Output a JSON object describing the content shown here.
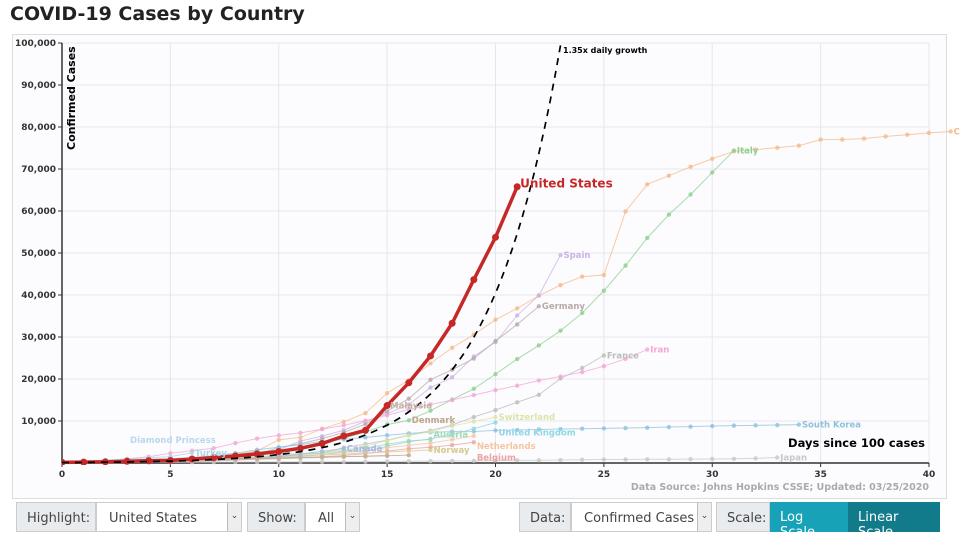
{
  "title": "COVID-19 Cases by Country",
  "controls": {
    "highlight_label": "Highlight:",
    "highlight_value": "United States",
    "show_label": "Show:",
    "show_value": "All",
    "data_label": "Data:",
    "data_value": "Confirmed Cases",
    "scale_label": "Scale:",
    "log_button": "Log Scale",
    "linear_button": "Linear Scale",
    "active_scale": "Linear Scale"
  },
  "chart_data": {
    "type": "line",
    "xlabel": "Days since 100 cases",
    "ylabel": "Confirmed Cases",
    "xlim": [
      0,
      40
    ],
    "ylim": [
      0,
      100000
    ],
    "xticks": [
      "0",
      "5",
      "10",
      "15",
      "20",
      "25",
      "30",
      "35",
      "40"
    ],
    "yticks": [
      "10,000",
      "20,000",
      "30,000",
      "40,000",
      "50,000",
      "60,000",
      "70,000",
      "80,000",
      "90,000",
      "100,000"
    ],
    "grid": true,
    "source_note": "Data Source: Johns Hopkins CSSE; Updated: 03/25/2020",
    "reference_line": {
      "label": "1.35x daily growth",
      "start": 100,
      "growth": 1.35,
      "color": "#000000"
    },
    "highlight": "United States",
    "series": [
      {
        "name": "United States",
        "color": "#c62828",
        "start": 0,
        "values": [
          158,
          217,
          278,
          417,
          537,
          605,
          959,
          1281,
          1663,
          2179,
          2726,
          3499,
          4632,
          6421,
          7786,
          13677,
          19100,
          25489,
          33276,
          43667,
          53740,
          65778
        ]
      },
      {
        "name": "China",
        "color": "#f5b98a",
        "start": 4,
        "values": [
          548,
          643,
          920,
          1406,
          2075,
          2877,
          5509,
          6087,
          8141,
          9802,
          11891,
          16630,
          19716,
          23707,
          27440,
          30587,
          34110,
          36814,
          39829,
          42354,
          44386,
          44759,
          59895,
          66358,
          68413,
          70513,
          72434,
          74211,
          74619,
          75077,
          75550,
          77001,
          77022,
          77241,
          77754,
          78166,
          78600,
          78928
        ]
      },
      {
        "name": "Italy",
        "color": "#8fcf8f",
        "start": 0,
        "values": [
          155,
          229,
          322,
          453,
          655,
          888,
          1128,
          1694,
          2036,
          2502,
          3089,
          3858,
          4636,
          5883,
          7375,
          9172,
          10149,
          12462,
          15113,
          17660,
          21157,
          24747,
          27980,
          31506,
          35713,
          41035,
          47021,
          53578,
          59138,
          63927,
          69176,
          74386
        ]
      },
      {
        "name": "Spain",
        "color": "#c9b3e6",
        "start": 0,
        "values": [
          120,
          165,
          222,
          282,
          400,
          500,
          673,
          1073,
          1695,
          2277,
          3146,
          5232,
          6391,
          7798,
          9942,
          11748,
          13910,
          17963,
          20410,
          25374,
          28768,
          35136,
          39885,
          49515
        ]
      },
      {
        "name": "Germany",
        "color": "#b9a9a9",
        "start": 0,
        "values": [
          196,
          262,
          482,
          670,
          795,
          1040,
          1176,
          1457,
          1908,
          2078,
          3675,
          4585,
          5795,
          7272,
          9257,
          12327,
          15320,
          19848,
          22213,
          24873,
          29056,
          32986,
          37323
        ]
      },
      {
        "name": "France",
        "color": "#bdbdbd",
        "start": 0,
        "values": [
          100,
          130,
          191,
          204,
          285,
          377,
          653,
          706,
          1126,
          1209,
          1784,
          2284,
          2284,
          3661,
          4499,
          5423,
          6650,
          7699,
          9043,
          10947,
          12612,
          14459,
          16243,
          20123,
          22622,
          25600
        ]
      },
      {
        "name": "Iran",
        "color": "#f2a7d6",
        "start": 0,
        "values": [
          245,
          388,
          593,
          978,
          1501,
          2336,
          2922,
          3513,
          4747,
          5823,
          6566,
          7161,
          8042,
          9000,
          10075,
          11364,
          12729,
          13938,
          14991,
          16169,
          17361,
          18407,
          19644,
          20610,
          21638,
          23049,
          24811,
          27017
        ]
      },
      {
        "name": "South Korea",
        "color": "#8fc1dc",
        "start": 0,
        "values": [
          104,
          204,
          433,
          602,
          833,
          977,
          1261,
          1766,
          2337,
          3150,
          3736,
          4335,
          5186,
          5621,
          6088,
          6593,
          7041,
          7314,
          7478,
          7513,
          7755,
          7869,
          7979,
          8086,
          8162,
          8236,
          8320,
          8413,
          8565,
          8652,
          8799,
          8897,
          8961,
          9037,
          9137
        ]
      },
      {
        "name": "Japan",
        "color": "#c8c8c8",
        "start": 0,
        "values": [
          105,
          132,
          144,
          144,
          156,
          160,
          170,
          189,
          214,
          228,
          241,
          256,
          274,
          293,
          331,
          360,
          420,
          461,
          502,
          511,
          581,
          639,
          639,
          701,
          773,
          839,
          839,
          878,
          889,
          924,
          963,
          1007,
          1101,
          1307
        ]
      },
      {
        "name": "Switzerland",
        "color": "#d9e6a8",
        "start": 0,
        "values": [
          114,
          214,
          268,
          337,
          374,
          491,
          652,
          652,
          1139,
          1359,
          2200,
          2200,
          2700,
          3028,
          4075,
          5294,
          6575,
          7474,
          8795,
          9877,
          10897
        ]
      },
      {
        "name": "United Kingdom",
        "color": "#8fd6e6",
        "start": 0,
        "values": [
          115,
          163,
          206,
          273,
          321,
          382,
          456,
          459,
          802,
          1144,
          1145,
          1551,
          1960,
          2642,
          2716,
          4014,
          5067,
          5745,
          6726,
          8164,
          9640
        ]
      },
      {
        "name": "Netherlands",
        "color": "#f5c6a0",
        "start": 0,
        "values": [
          128,
          188,
          265,
          321,
          382,
          503,
          503,
          806,
          962,
          1138,
          1416,
          1711,
          2058,
          2467,
          3003,
          3640,
          4216,
          4764,
          5580,
          6438
        ]
      },
      {
        "name": "Belgium",
        "color": "#eba3a3",
        "start": 0,
        "values": [
          109,
          169,
          200,
          239,
          267,
          314,
          314,
          559,
          689,
          886,
          1058,
          1243,
          1486,
          1795,
          2257,
          2815,
          3401,
          3743,
          4269,
          4937
        ]
      },
      {
        "name": "Norway",
        "color": "#d8c98f",
        "start": 0,
        "values": [
          113,
          169,
          192,
          277,
          621,
          996,
          1090,
          1221,
          1333,
          1463,
          1550,
          1746,
          1914,
          2118,
          2385,
          2621,
          2863,
          3084
        ]
      },
      {
        "name": "Austria",
        "color": "#9edbb0",
        "start": 0,
        "values": [
          104,
          131,
          182,
          246,
          302,
          504,
          655,
          860,
          1018,
          1332,
          1646,
          2013,
          2388,
          2814,
          3582,
          4474,
          5283,
          5588
        ]
      },
      {
        "name": "Turkey",
        "color": "#a8d4e8",
        "start": 0,
        "values": [
          191,
          359,
          670,
          947,
          1236,
          1529,
          2433
        ]
      },
      {
        "name": "Diamond Princess",
        "color": "#b8d8ef",
        "start": 0,
        "values": [
          454,
          542,
          621,
          691
        ]
      },
      {
        "name": "Canada",
        "color": "#a7b5e8",
        "start": 0,
        "values": [
          103,
          117,
          176,
          252,
          304,
          424,
          594,
          800,
          943,
          1277,
          1469,
          2088,
          2790,
          3409
        ]
      },
      {
        "name": "Denmark",
        "color": "#bfa58a",
        "start": 0,
        "values": [
          156,
          264,
          444,
          617,
          804,
          836,
          875,
          933,
          1024,
          1115,
          1225,
          1337,
          1420,
          1514,
          1572,
          1718,
          1862
        ]
      },
      {
        "name": "Malaysia",
        "color": "#c4b0a0",
        "start": 0,
        "values": [
          129,
          149,
          149,
          197,
          238,
          428,
          566,
          673,
          790,
          900,
          1030,
          1183,
          1306,
          1518,
          1624,
          1796
        ]
      }
    ]
  }
}
